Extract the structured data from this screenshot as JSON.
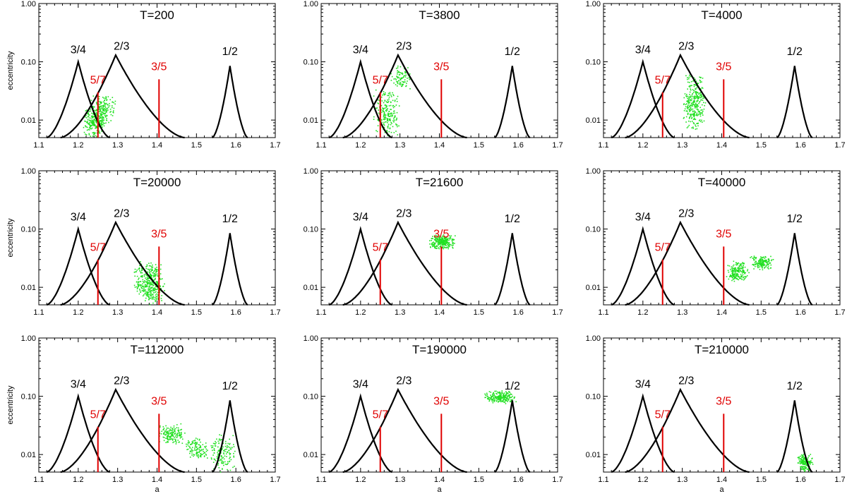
{
  "chart_data": {
    "type": "scatter",
    "layout": {
      "rows": 3,
      "cols": 3
    },
    "xlabel": "a",
    "ylabel": "eccentricity",
    "xlim": [
      1.1,
      1.7
    ],
    "ylim": [
      0.005,
      1.0
    ],
    "yscale": "log",
    "x_ticks": [
      "1.1",
      "1.2",
      "1.3",
      "1.4",
      "1.5",
      "1.6",
      "1.7"
    ],
    "y_ticks": [
      "0.01",
      "0.10",
      "1.00"
    ],
    "colors": {
      "resonance_black": "#000000",
      "resonance_red": "#e00000",
      "particles": "#22e022"
    },
    "resonances": [
      {
        "label": "3/4",
        "color": "black",
        "center": 1.2,
        "peak_e": 0.1,
        "left_edge": 1.12,
        "right_edge": 1.28,
        "label_pos": [
          1.2,
          0.165
        ]
      },
      {
        "label": "2/3",
        "color": "black",
        "center": 1.295,
        "peak_e": 0.13,
        "left_edge": 1.155,
        "right_edge": 1.47,
        "label_pos": [
          1.31,
          0.19
        ]
      },
      {
        "label": "1/2",
        "color": "black",
        "center": 1.585,
        "peak_e": 0.085,
        "left_edge": 1.54,
        "right_edge": 1.63,
        "label_pos": [
          1.585,
          0.155
        ]
      },
      {
        "label": "5/7",
        "color": "red",
        "x": 1.25,
        "top_e": 0.03,
        "label_pos": [
          1.25,
          0.05
        ]
      },
      {
        "label": "3/5",
        "color": "red",
        "x": 1.405,
        "top_e": 0.05,
        "label_pos": [
          1.405,
          0.085
        ]
      }
    ],
    "panels": [
      {
        "title": "T=200",
        "clouds": [
          {
            "x_range": [
              1.21,
              1.27
            ],
            "e_range": [
              0.005,
              0.018
            ],
            "n": 220
          },
          {
            "x_range": [
              1.23,
              1.295
            ],
            "e_range": [
              0.008,
              0.03
            ],
            "n": 160
          }
        ]
      },
      {
        "title": "T=3800",
        "clouds": [
          {
            "x_range": [
              1.23,
              1.3
            ],
            "e_range": [
              0.005,
              0.035
            ],
            "n": 220
          },
          {
            "x_range": [
              1.27,
              1.33
            ],
            "e_range": [
              0.03,
              0.09
            ],
            "n": 90
          }
        ]
      },
      {
        "title": "T=4000",
        "clouds": [
          {
            "x_range": [
              1.3,
              1.36
            ],
            "e_range": [
              0.006,
              0.07
            ],
            "n": 320
          }
        ]
      },
      {
        "title": "T=20000",
        "clouds": [
          {
            "x_range": [
              1.34,
              1.42
            ],
            "e_range": [
              0.005,
              0.03
            ],
            "n": 380
          }
        ]
      },
      {
        "title": "T=21600",
        "clouds": [
          {
            "x_range": [
              1.37,
              1.44
            ],
            "e_range": [
              0.045,
              0.085
            ],
            "n": 260
          }
        ]
      },
      {
        "title": "T=40000",
        "clouds": [
          {
            "x_range": [
              1.41,
              1.47
            ],
            "e_range": [
              0.012,
              0.03
            ],
            "n": 180
          },
          {
            "x_range": [
              1.47,
              1.53
            ],
            "e_range": [
              0.02,
              0.036
            ],
            "n": 150
          }
        ]
      },
      {
        "title": "T=112000",
        "clouds": [
          {
            "x_range": [
              1.4,
              1.47
            ],
            "e_range": [
              0.015,
              0.035
            ],
            "n": 160
          },
          {
            "x_range": [
              1.47,
              1.53
            ],
            "e_range": [
              0.008,
              0.02
            ],
            "n": 120
          },
          {
            "x_range": [
              1.53,
              1.6
            ],
            "e_range": [
              0.005,
              0.025
            ],
            "n": 150
          }
        ]
      },
      {
        "title": "T=190000",
        "clouds": [
          {
            "x_range": [
              1.51,
              1.6
            ],
            "e_range": [
              0.075,
              0.13
            ],
            "n": 220
          }
        ]
      },
      {
        "title": "T=210000",
        "clouds": [
          {
            "x_range": [
              1.59,
              1.63
            ],
            "e_range": [
              0.005,
              0.011
            ],
            "n": 160
          }
        ]
      }
    ]
  }
}
